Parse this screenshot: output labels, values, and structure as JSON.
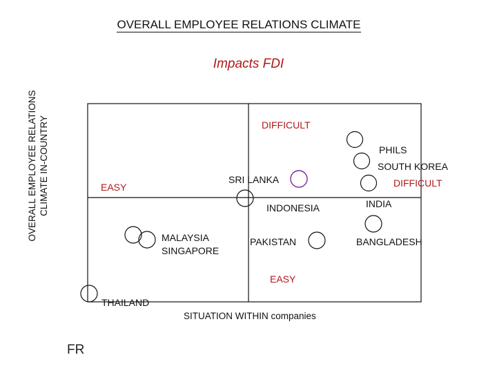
{
  "title": "OVERALL EMPLOYEE RELATIONS CLIMATE",
  "subtitle": "Impacts FDI",
  "y_axis_label": [
    "OVERALL EMPLOYEE RELATIONS",
    "CLIMATE IN-COUNTRY"
  ],
  "x_axis_label": "SITUATION WITHIN companies",
  "quadrant_labels": {
    "top_difficult": "DIFFICULT",
    "left_easy": "EASY",
    "right_difficult": "DIFFICULT",
    "bottom_easy": "EASY"
  },
  "countries": {
    "phils": "PHILS",
    "south_korea": "SOUTH KOREA",
    "sri_lanka": "SRI LANKA",
    "indonesia": "INDONESIA",
    "india": "INDIA",
    "malaysia": "MALAYSIA",
    "singapore": "SINGAPORE",
    "pakistan": "PAKISTAN",
    "bangladesh": "BANGLADESH",
    "thailand": "THAILAND"
  },
  "footer": "FR",
  "colors": {
    "text": "#111111",
    "accent_red": "#b01818",
    "marker_purple": "#7a2a9a"
  }
}
